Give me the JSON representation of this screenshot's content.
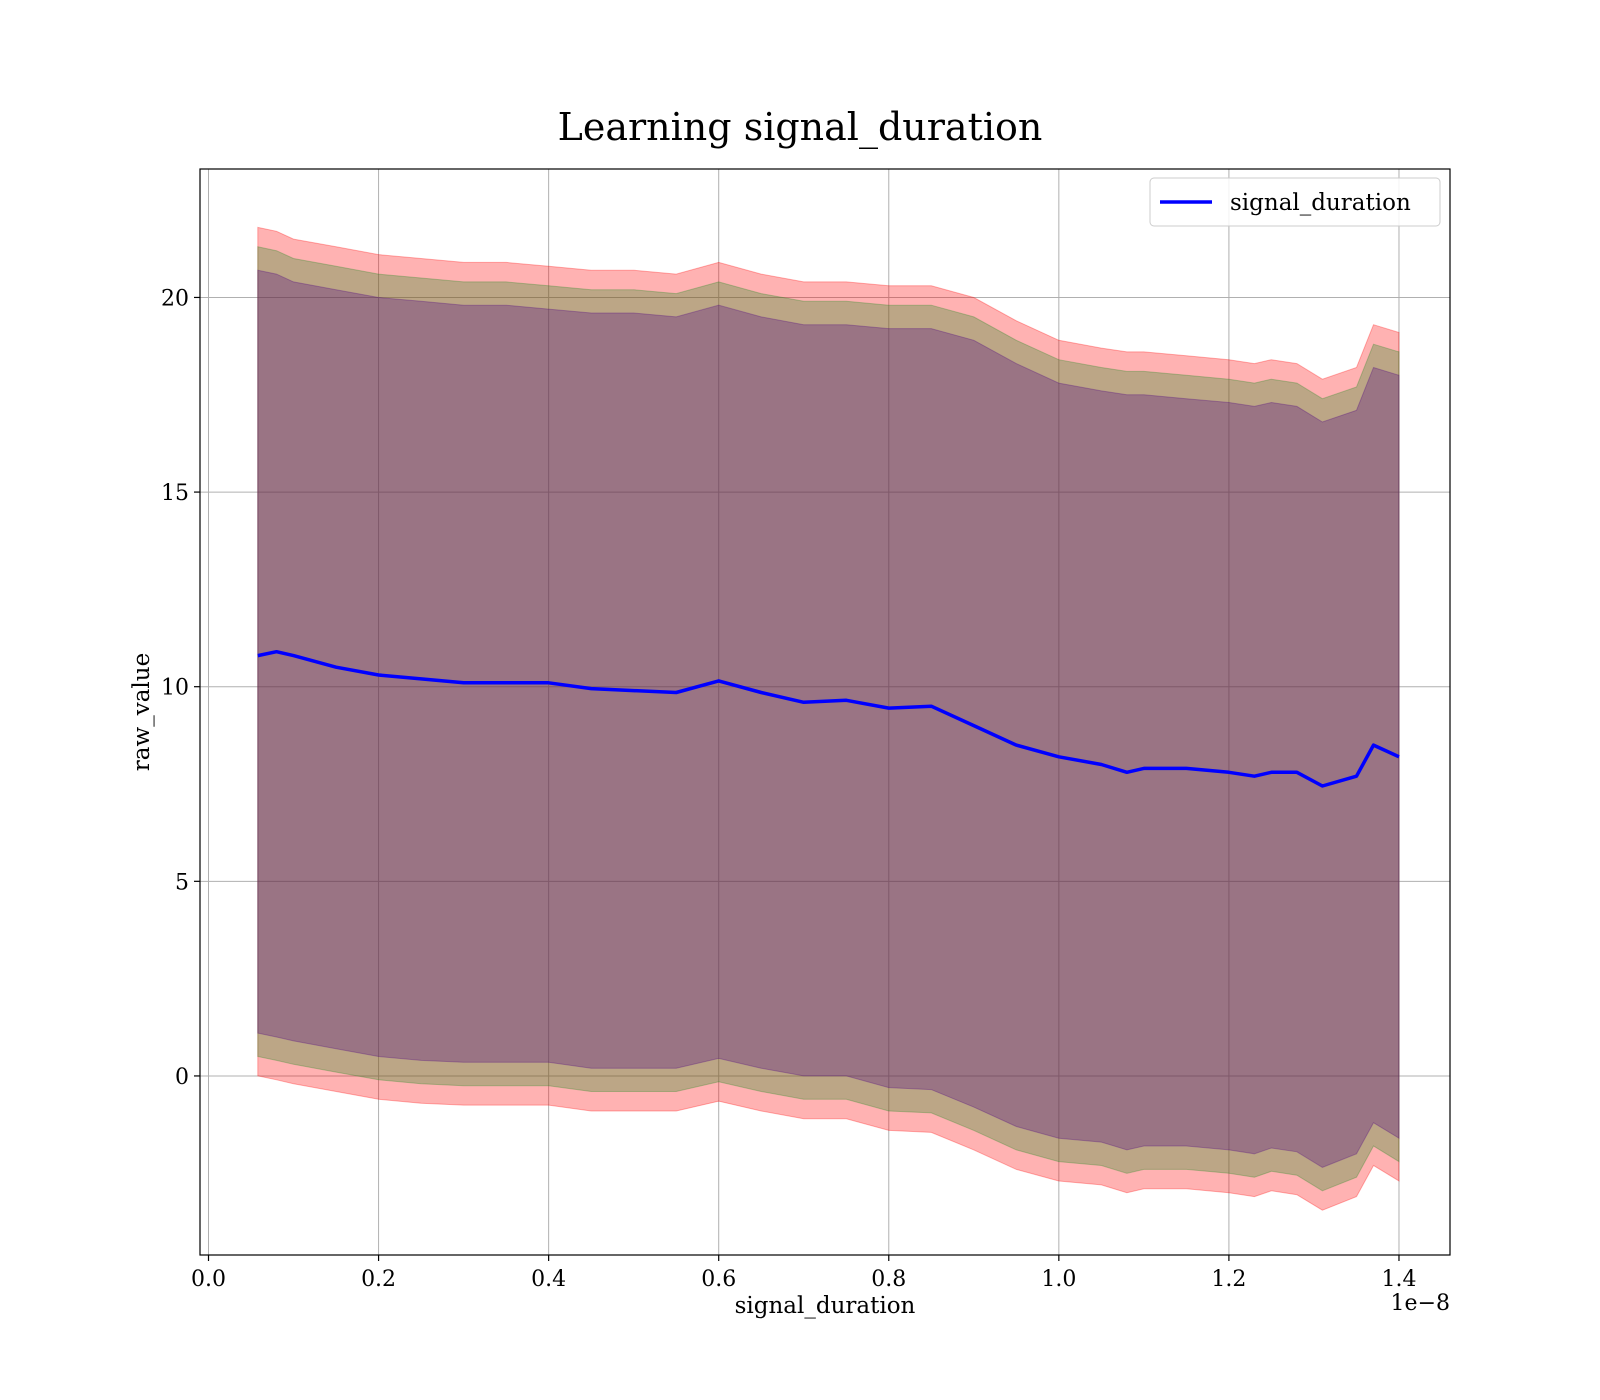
{
  "chart_data": {
    "type": "area",
    "title": "Learning signal_duration",
    "xlabel": "signal_duration",
    "ylabel": "raw_value",
    "x_offset_text": "1e−8",
    "xlim": [
      -0.01,
      1.46
    ],
    "ylim": [
      -4.6,
      23.3
    ],
    "x_ticks": [
      0.0,
      0.2,
      0.4,
      0.6,
      0.8,
      1.0,
      1.2,
      1.4
    ],
    "x_tick_labels": [
      "0.0",
      "0.2",
      "0.4",
      "0.6",
      "0.8",
      "1.0",
      "1.2",
      "1.4"
    ],
    "y_ticks": [
      0,
      5,
      10,
      15,
      20
    ],
    "y_tick_labels": [
      "0",
      "5",
      "10",
      "15",
      "20"
    ],
    "grid": true,
    "legend_position": "top-right",
    "x": [
      0.058,
      0.08,
      0.1,
      0.15,
      0.2,
      0.25,
      0.3,
      0.35,
      0.4,
      0.45,
      0.5,
      0.55,
      0.6,
      0.65,
      0.7,
      0.75,
      0.8,
      0.85,
      0.9,
      0.95,
      1.0,
      1.05,
      1.08,
      1.1,
      1.15,
      1.2,
      1.23,
      1.25,
      1.28,
      1.31,
      1.35,
      1.37,
      1.4
    ],
    "series": [
      {
        "name": "signal_duration",
        "color": "#0000ff",
        "values": [
          10.8,
          10.9,
          10.8,
          10.5,
          10.3,
          10.2,
          10.1,
          10.1,
          10.1,
          9.95,
          9.9,
          9.85,
          10.15,
          9.85,
          9.6,
          9.65,
          9.45,
          9.5,
          9.0,
          8.5,
          8.2,
          8.0,
          7.8,
          7.9,
          7.9,
          7.8,
          7.7,
          7.8,
          7.8,
          7.45,
          7.7,
          8.5,
          8.2
        ]
      }
    ],
    "bands": [
      {
        "color": "#ff0000",
        "opacity": 0.3,
        "upper": [
          21.8,
          21.7,
          21.5,
          21.3,
          21.1,
          21.0,
          20.9,
          20.9,
          20.8,
          20.7,
          20.7,
          20.6,
          20.9,
          20.6,
          20.4,
          20.4,
          20.3,
          20.3,
          20.0,
          19.4,
          18.9,
          18.7,
          18.6,
          18.6,
          18.5,
          18.4,
          18.3,
          18.4,
          18.3,
          17.9,
          18.2,
          19.3,
          19.1
        ],
        "lower": [
          0.0,
          -0.1,
          -0.2,
          -0.4,
          -0.6,
          -0.7,
          -0.75,
          -0.75,
          -0.75,
          -0.9,
          -0.9,
          -0.9,
          -0.65,
          -0.9,
          -1.1,
          -1.1,
          -1.4,
          -1.45,
          -1.9,
          -2.4,
          -2.7,
          -2.8,
          -3.0,
          -2.9,
          -2.9,
          -3.0,
          -3.1,
          -2.95,
          -3.05,
          -3.45,
          -3.1,
          -2.3,
          -2.7
        ]
      },
      {
        "color": "#228b22",
        "opacity": 0.3,
        "upper": [
          21.3,
          21.2,
          21.0,
          20.8,
          20.6,
          20.5,
          20.4,
          20.4,
          20.3,
          20.2,
          20.2,
          20.1,
          20.4,
          20.1,
          19.9,
          19.9,
          19.8,
          19.8,
          19.5,
          18.9,
          18.4,
          18.2,
          18.1,
          18.1,
          18.0,
          17.9,
          17.8,
          17.9,
          17.8,
          17.4,
          17.7,
          18.8,
          18.6
        ],
        "lower": [
          0.5,
          0.4,
          0.3,
          0.1,
          -0.1,
          -0.2,
          -0.25,
          -0.25,
          -0.25,
          -0.4,
          -0.4,
          -0.4,
          -0.15,
          -0.4,
          -0.6,
          -0.6,
          -0.9,
          -0.95,
          -1.4,
          -1.9,
          -2.2,
          -2.3,
          -2.5,
          -2.4,
          -2.4,
          -2.5,
          -2.6,
          -2.45,
          -2.55,
          -2.95,
          -2.6,
          -1.8,
          -2.2
        ]
      },
      {
        "color": "#4b0082",
        "opacity": 0.3,
        "upper": [
          20.7,
          20.6,
          20.4,
          20.2,
          20.0,
          19.9,
          19.8,
          19.8,
          19.7,
          19.6,
          19.6,
          19.5,
          19.8,
          19.5,
          19.3,
          19.3,
          19.2,
          19.2,
          18.9,
          18.3,
          17.8,
          17.6,
          17.5,
          17.5,
          17.4,
          17.3,
          17.2,
          17.3,
          17.2,
          16.8,
          17.1,
          18.2,
          18.0
        ],
        "lower": [
          1.1,
          1.0,
          0.9,
          0.7,
          0.5,
          0.4,
          0.35,
          0.35,
          0.35,
          0.2,
          0.2,
          0.2,
          0.45,
          0.2,
          0.0,
          0.0,
          -0.3,
          -0.35,
          -0.8,
          -1.3,
          -1.6,
          -1.7,
          -1.9,
          -1.8,
          -1.8,
          -1.9,
          -2.0,
          -1.85,
          -1.95,
          -2.35,
          -2.0,
          -1.2,
          -1.6
        ]
      }
    ]
  }
}
